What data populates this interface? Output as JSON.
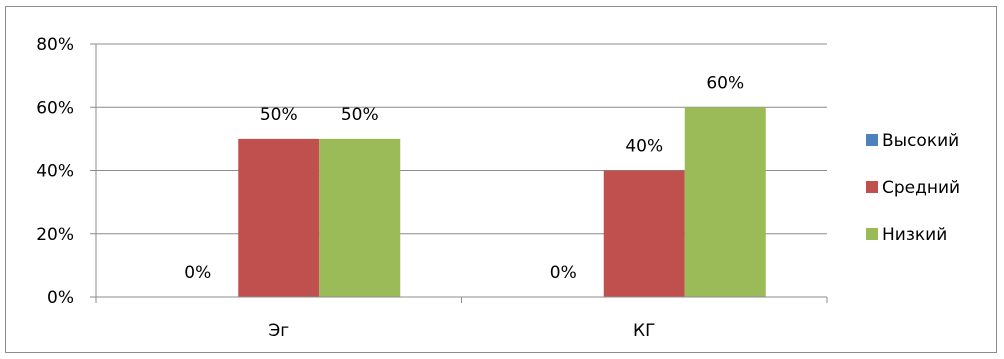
{
  "chart_data": {
    "type": "bar",
    "categories": [
      "Эг",
      "КГ"
    ],
    "series": [
      {
        "name": "Высокий",
        "values": [
          0,
          0
        ],
        "color": "#4F81BD"
      },
      {
        "name": "Средний",
        "values": [
          50,
          40
        ],
        "color": "#C0504D"
      },
      {
        "name": "Низкий",
        "values": [
          50,
          60
        ],
        "color": "#9BBB59"
      }
    ],
    "y_ticks": [
      "0%",
      "20%",
      "40%",
      "60%",
      "80%"
    ],
    "ylim": [
      0,
      80
    ],
    "value_suffix": "%",
    "grid": true,
    "legend_position": "right",
    "title": "",
    "xlabel": "",
    "ylabel": ""
  }
}
